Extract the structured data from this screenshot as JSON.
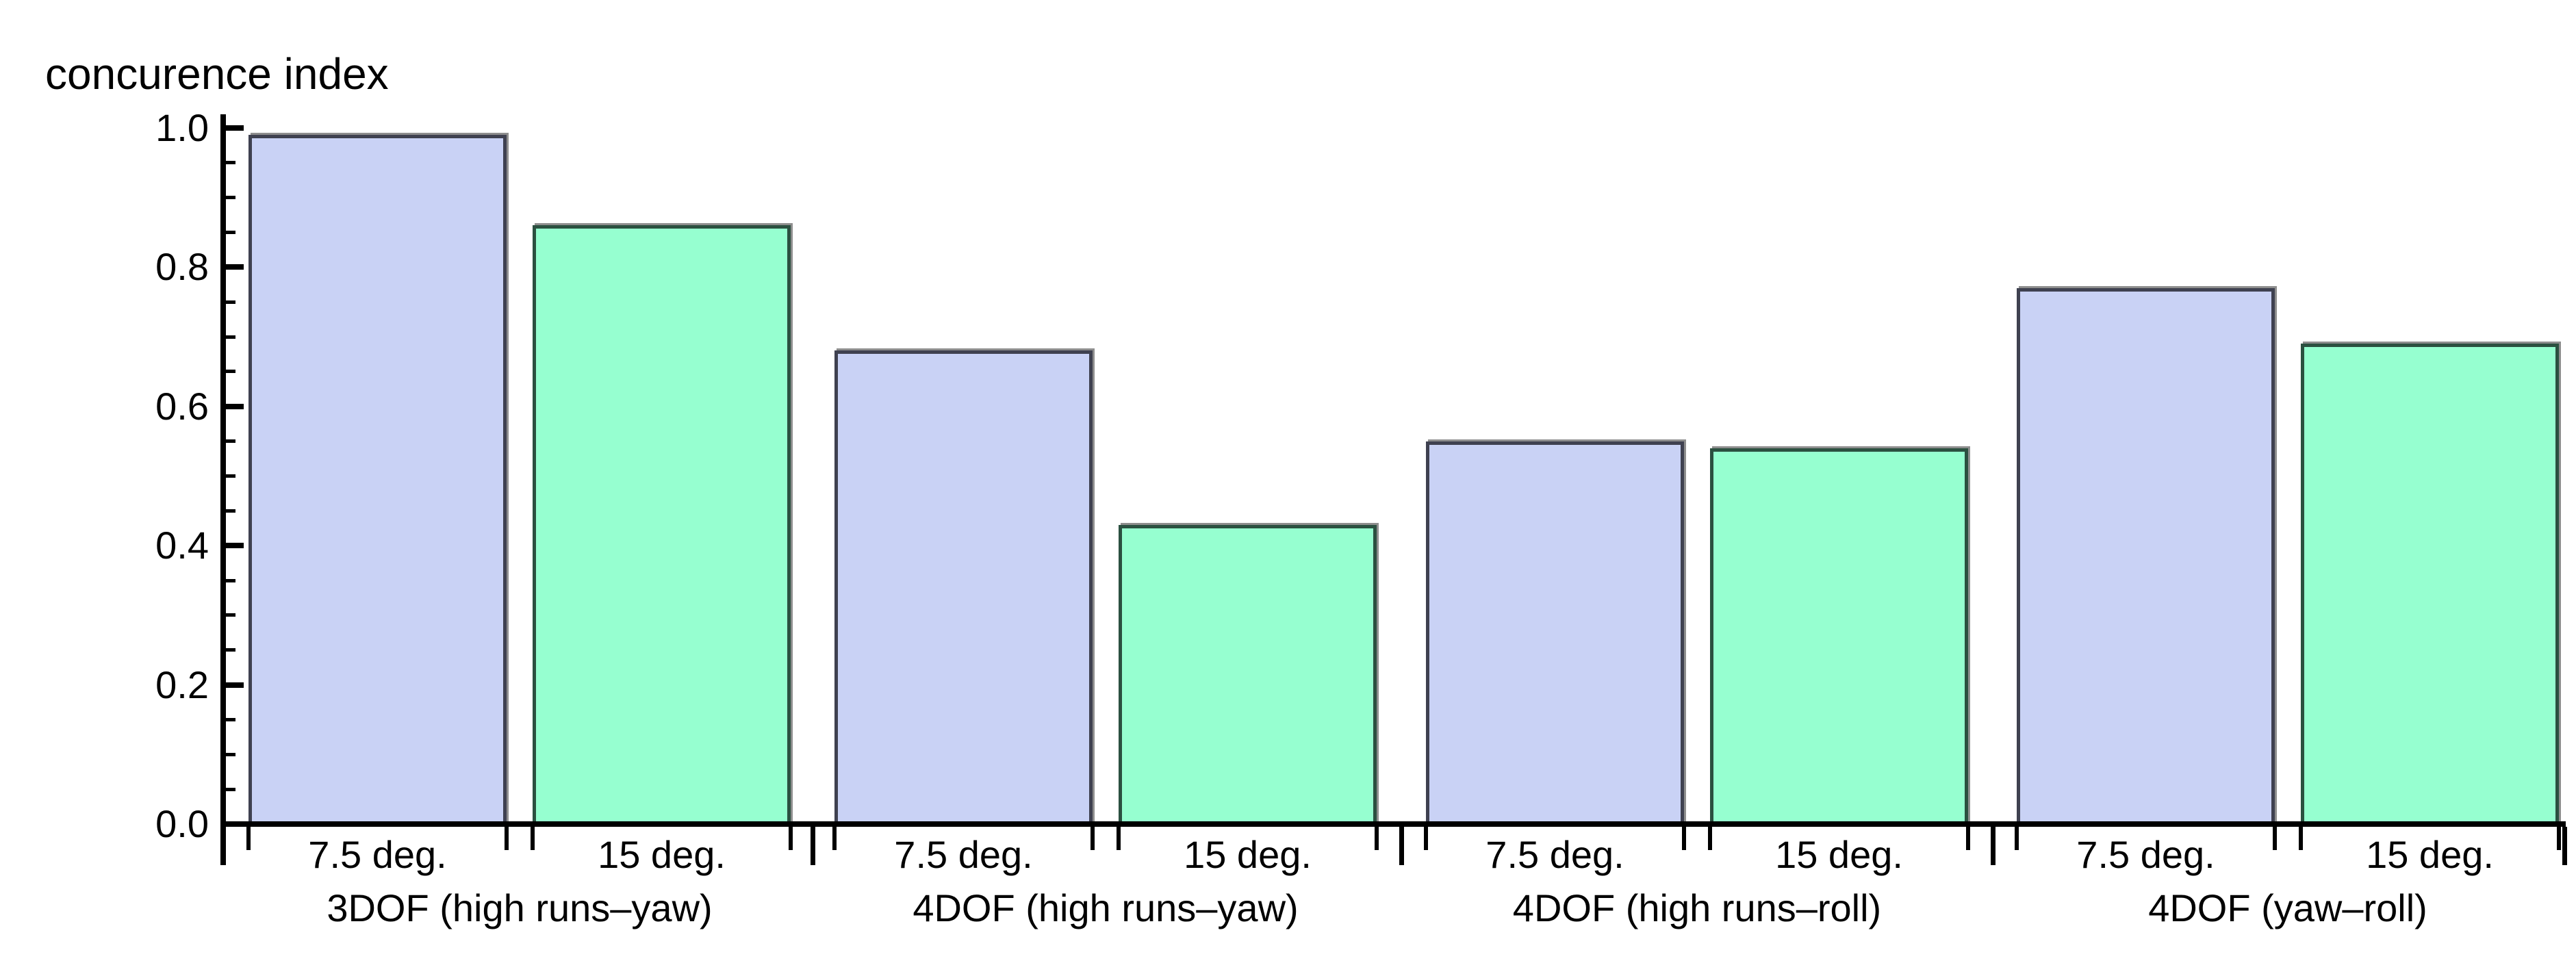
{
  "chart_data": {
    "type": "bar",
    "title": "concurence index",
    "ylabel": "concurence index",
    "xlabel": "",
    "ylim": [
      0,
      1.0
    ],
    "ytick_labels": [
      "0.0",
      "0.2",
      "0.4",
      "0.6",
      "0.8",
      "1.0"
    ],
    "minor_tick_step": 0.05,
    "grid": false,
    "legend_position": "none",
    "categories": [
      "3DOF (high runs–yaw)",
      "4DOF (high runs–yaw)",
      "4DOF (high runs–roll)",
      "4DOF (yaw–roll)"
    ],
    "series": [
      {
        "name": "7.5 deg.",
        "values": [
          0.99,
          0.68,
          0.55,
          0.77
        ]
      },
      {
        "name": "15 deg.",
        "values": [
          0.86,
          0.43,
          0.54,
          0.69
        ]
      }
    ]
  },
  "colors": {
    "background": "#ffffff",
    "axis": "#000000",
    "text": "#000000",
    "series": [
      {
        "fill": "#c9d2f5",
        "edge": "#3f4150"
      },
      {
        "fill": "#96ffd0",
        "edge": "#2b5040"
      }
    ],
    "bar_shadow": "#8e8e8e"
  }
}
